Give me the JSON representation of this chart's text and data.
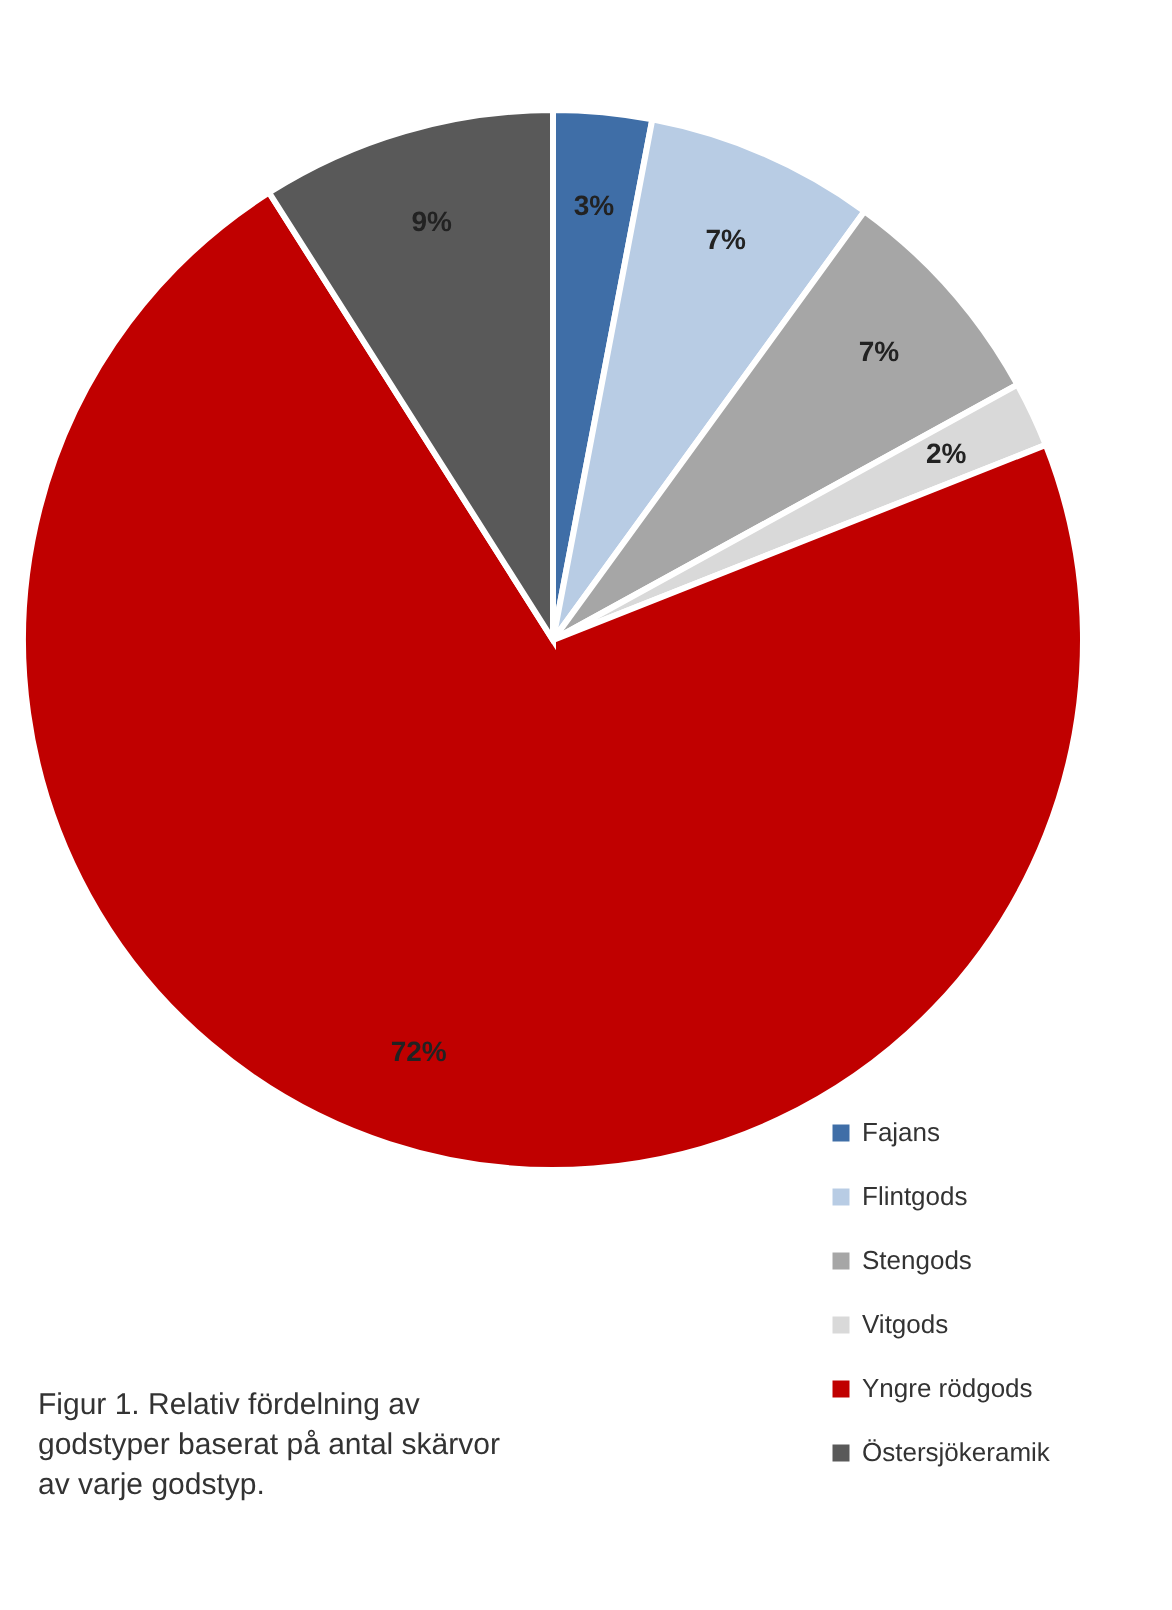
{
  "chart_data": {
    "type": "pie",
    "categories": [
      "Fajans",
      "Flintgods",
      "Stengods",
      "Vitgods",
      "Yngre rödgods",
      "Östersjökeramik"
    ],
    "values": [
      3,
      7,
      7,
      2,
      72,
      9
    ],
    "colors": [
      "#3f6ea7",
      "#b8cce4",
      "#a6a6a6",
      "#d9d9d9",
      "#c00000",
      "#595959"
    ],
    "value_labels": [
      "3%",
      "7%",
      "7%",
      "2%",
      "72%",
      "9%"
    ],
    "legend": "bottom right",
    "annotations": [
      "Figur 1. Relativ fördelning av godstyper baserat på antal skärvor av varje godstyp."
    ]
  }
}
